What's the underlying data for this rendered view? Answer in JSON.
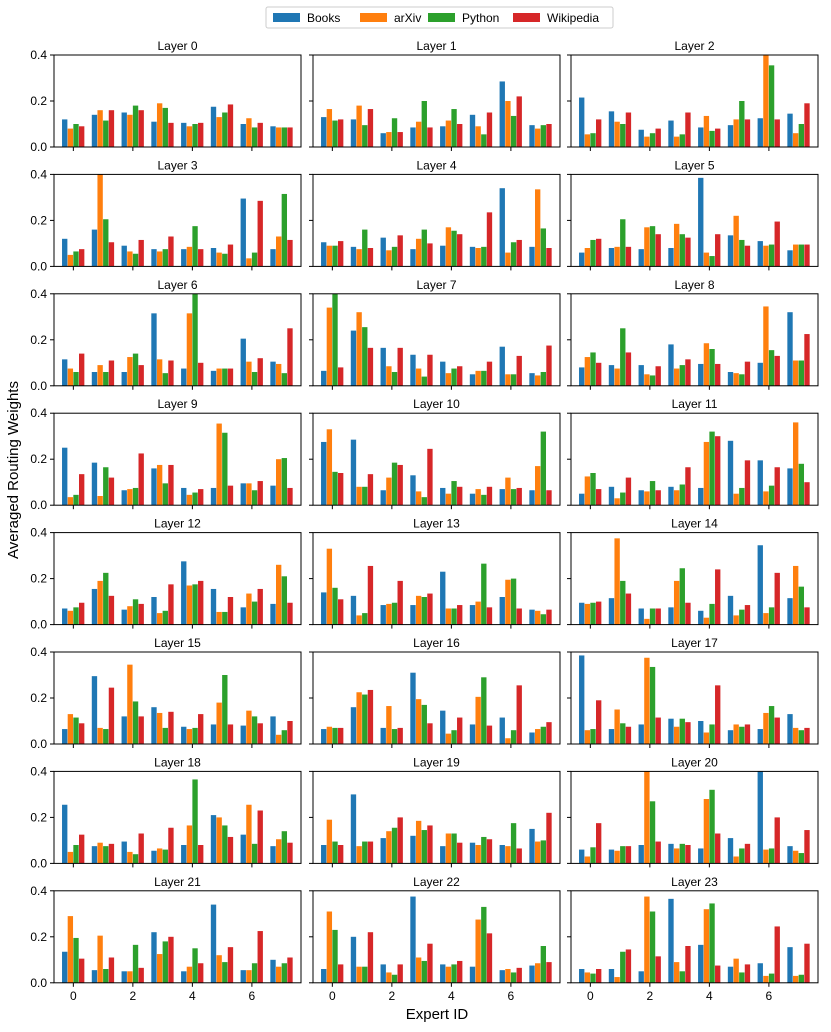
{
  "chart_data": {
    "type": "bar",
    "layout": "small-multiples 8 rows x 3 columns",
    "xlabel": "Expert ID",
    "ylabel": "Averaged Routing Weights",
    "ylim": [
      0,
      0.4
    ],
    "yticks": [
      "0.0",
      "0.2",
      "0.4"
    ],
    "xticks": [
      "0",
      "2",
      "4",
      "6"
    ],
    "experts": [
      0,
      1,
      2,
      3,
      4,
      5,
      6,
      7
    ],
    "legend_position": "top-center",
    "series": [
      {
        "name": "Books",
        "color": "#1f77b4"
      },
      {
        "name": "arXiv",
        "color": "#ff7f0e"
      },
      {
        "name": "Python",
        "color": "#2ca02c"
      },
      {
        "name": "Wikipedia",
        "color": "#d62728"
      }
    ],
    "panels": [
      {
        "title": "Layer 0",
        "values": [
          [
            0.12,
            0.14,
            0.15,
            0.11,
            0.105,
            0.175,
            0.1,
            0.09
          ],
          [
            0.08,
            0.16,
            0.14,
            0.19,
            0.09,
            0.13,
            0.125,
            0.085
          ],
          [
            0.1,
            0.115,
            0.18,
            0.17,
            0.1,
            0.15,
            0.085,
            0.085
          ],
          [
            0.09,
            0.16,
            0.16,
            0.105,
            0.105,
            0.185,
            0.105,
            0.085
          ]
        ]
      },
      {
        "title": "Layer 1",
        "values": [
          [
            0.13,
            0.12,
            0.06,
            0.085,
            0.09,
            0.14,
            0.285,
            0.095
          ],
          [
            0.165,
            0.18,
            0.065,
            0.11,
            0.115,
            0.09,
            0.2,
            0.08
          ],
          [
            0.115,
            0.095,
            0.125,
            0.2,
            0.165,
            0.055,
            0.135,
            0.095
          ],
          [
            0.12,
            0.165,
            0.065,
            0.085,
            0.1,
            0.15,
            0.22,
            0.1
          ]
        ]
      },
      {
        "title": "Layer 2",
        "values": [
          [
            0.215,
            0.155,
            0.075,
            0.115,
            0.085,
            0.095,
            0.125,
            0.145
          ],
          [
            0.055,
            0.11,
            0.045,
            0.045,
            0.135,
            0.12,
            0.4,
            0.06
          ],
          [
            0.06,
            0.1,
            0.06,
            0.055,
            0.07,
            0.2,
            0.355,
            0.1
          ],
          [
            0.12,
            0.15,
            0.08,
            0.15,
            0.08,
            0.12,
            0.12,
            0.19
          ]
        ]
      },
      {
        "title": "Layer 3",
        "values": [
          [
            0.12,
            0.16,
            0.09,
            0.075,
            0.075,
            0.08,
            0.295,
            0.075
          ],
          [
            0.05,
            0.4,
            0.065,
            0.065,
            0.085,
            0.06,
            0.035,
            0.13
          ],
          [
            0.065,
            0.205,
            0.055,
            0.075,
            0.175,
            0.055,
            0.06,
            0.315
          ],
          [
            0.075,
            0.105,
            0.115,
            0.13,
            0.075,
            0.095,
            0.285,
            0.115
          ]
        ]
      },
      {
        "title": "Layer 4",
        "values": [
          [
            0.105,
            0.085,
            0.125,
            0.075,
            0.09,
            0.085,
            0.34,
            0.085
          ],
          [
            0.09,
            0.075,
            0.07,
            0.12,
            0.17,
            0.08,
            0.06,
            0.335
          ],
          [
            0.09,
            0.16,
            0.085,
            0.16,
            0.155,
            0.085,
            0.105,
            0.165
          ],
          [
            0.11,
            0.08,
            0.135,
            0.1,
            0.14,
            0.235,
            0.115,
            0.08
          ]
        ]
      },
      {
        "title": "Layer 5",
        "values": [
          [
            0.06,
            0.08,
            0.075,
            0.08,
            0.385,
            0.135,
            0.11,
            0.07
          ],
          [
            0.08,
            0.085,
            0.17,
            0.185,
            0.06,
            0.22,
            0.09,
            0.095
          ],
          [
            0.115,
            0.205,
            0.175,
            0.14,
            0.045,
            0.115,
            0.095,
            0.095
          ],
          [
            0.12,
            0.085,
            0.14,
            0.125,
            0.14,
            0.09,
            0.195,
            0.095
          ]
        ]
      },
      {
        "title": "Layer 6",
        "values": [
          [
            0.115,
            0.06,
            0.06,
            0.315,
            0.075,
            0.065,
            0.205,
            0.105
          ],
          [
            0.075,
            0.09,
            0.125,
            0.115,
            0.315,
            0.075,
            0.105,
            0.095
          ],
          [
            0.06,
            0.06,
            0.14,
            0.055,
            0.41,
            0.075,
            0.06,
            0.055
          ],
          [
            0.14,
            0.11,
            0.09,
            0.11,
            0.1,
            0.075,
            0.12,
            0.25
          ]
        ]
      },
      {
        "title": "Layer 7",
        "values": [
          [
            0.065,
            0.24,
            0.165,
            0.135,
            0.105,
            0.05,
            0.17,
            0.055
          ],
          [
            0.34,
            0.32,
            0.085,
            0.075,
            0.055,
            0.065,
            0.05,
            0.045
          ],
          [
            0.41,
            0.255,
            0.06,
            0.04,
            0.075,
            0.065,
            0.05,
            0.06
          ],
          [
            0.08,
            0.165,
            0.165,
            0.135,
            0.085,
            0.105,
            0.13,
            0.175
          ]
        ]
      },
      {
        "title": "Layer 8",
        "values": [
          [
            0.08,
            0.09,
            0.09,
            0.18,
            0.095,
            0.06,
            0.1,
            0.32
          ],
          [
            0.125,
            0.075,
            0.05,
            0.075,
            0.185,
            0.055,
            0.345,
            0.11
          ],
          [
            0.145,
            0.25,
            0.045,
            0.09,
            0.16,
            0.05,
            0.155,
            0.11
          ],
          [
            0.1,
            0.145,
            0.085,
            0.115,
            0.095,
            0.105,
            0.13,
            0.225
          ]
        ]
      },
      {
        "title": "Layer 9",
        "values": [
          [
            0.25,
            0.185,
            0.065,
            0.16,
            0.075,
            0.075,
            0.095,
            0.085
          ],
          [
            0.035,
            0.04,
            0.07,
            0.175,
            0.045,
            0.355,
            0.095,
            0.2
          ],
          [
            0.045,
            0.165,
            0.075,
            0.095,
            0.055,
            0.315,
            0.065,
            0.205
          ],
          [
            0.135,
            0.12,
            0.225,
            0.175,
            0.07,
            0.085,
            0.105,
            0.075
          ]
        ]
      },
      {
        "title": "Layer 10",
        "values": [
          [
            0.275,
            0.285,
            0.065,
            0.13,
            0.075,
            0.05,
            0.07,
            0.065
          ],
          [
            0.33,
            0.08,
            0.12,
            0.06,
            0.05,
            0.07,
            0.12,
            0.17
          ],
          [
            0.145,
            0.08,
            0.185,
            0.035,
            0.105,
            0.045,
            0.07,
            0.32
          ],
          [
            0.14,
            0.135,
            0.175,
            0.245,
            0.08,
            0.08,
            0.075,
            0.065
          ]
        ]
      },
      {
        "title": "Layer 11",
        "values": [
          [
            0.05,
            0.08,
            0.065,
            0.08,
            0.075,
            0.28,
            0.195,
            0.16
          ],
          [
            0.125,
            0.03,
            0.06,
            0.065,
            0.275,
            0.05,
            0.06,
            0.36
          ],
          [
            0.14,
            0.055,
            0.105,
            0.09,
            0.32,
            0.075,
            0.085,
            0.18
          ],
          [
            0.07,
            0.12,
            0.065,
            0.165,
            0.3,
            0.195,
            0.165,
            0.1
          ]
        ]
      },
      {
        "title": "Layer 12",
        "values": [
          [
            0.07,
            0.155,
            0.065,
            0.12,
            0.275,
            0.155,
            0.075,
            0.09
          ],
          [
            0.06,
            0.19,
            0.08,
            0.05,
            0.17,
            0.055,
            0.135,
            0.26
          ],
          [
            0.075,
            0.225,
            0.11,
            0.06,
            0.175,
            0.055,
            0.1,
            0.21
          ],
          [
            0.095,
            0.125,
            0.09,
            0.175,
            0.19,
            0.12,
            0.155,
            0.095
          ]
        ]
      },
      {
        "title": "Layer 13",
        "values": [
          [
            0.14,
            0.125,
            0.085,
            0.085,
            0.23,
            0.085,
            0.12,
            0.065
          ],
          [
            0.33,
            0.04,
            0.09,
            0.125,
            0.07,
            0.1,
            0.195,
            0.06
          ],
          [
            0.16,
            0.05,
            0.095,
            0.12,
            0.07,
            0.265,
            0.2,
            0.045
          ],
          [
            0.11,
            0.255,
            0.19,
            0.135,
            0.085,
            0.075,
            0.07,
            0.065
          ]
        ]
      },
      {
        "title": "Layer 14",
        "values": [
          [
            0.095,
            0.115,
            0.07,
            0.075,
            0.06,
            0.125,
            0.345,
            0.115
          ],
          [
            0.09,
            0.375,
            0.025,
            0.19,
            0.03,
            0.04,
            0.05,
            0.255
          ],
          [
            0.095,
            0.19,
            0.07,
            0.245,
            0.09,
            0.065,
            0.075,
            0.165
          ],
          [
            0.1,
            0.135,
            0.07,
            0.095,
            0.24,
            0.085,
            0.225,
            0.075
          ]
        ]
      },
      {
        "title": "Layer 15",
        "values": [
          [
            0.065,
            0.295,
            0.12,
            0.16,
            0.075,
            0.085,
            0.08,
            0.12
          ],
          [
            0.13,
            0.07,
            0.345,
            0.135,
            0.065,
            0.18,
            0.145,
            0.04
          ],
          [
            0.115,
            0.065,
            0.185,
            0.07,
            0.07,
            0.3,
            0.12,
            0.06
          ],
          [
            0.09,
            0.245,
            0.12,
            0.14,
            0.13,
            0.085,
            0.09,
            0.1
          ]
        ]
      },
      {
        "title": "Layer 16",
        "values": [
          [
            0.065,
            0.16,
            0.07,
            0.31,
            0.145,
            0.085,
            0.115,
            0.05
          ],
          [
            0.075,
            0.225,
            0.165,
            0.195,
            0.045,
            0.205,
            0.025,
            0.065
          ],
          [
            0.07,
            0.215,
            0.065,
            0.17,
            0.06,
            0.29,
            0.06,
            0.075
          ],
          [
            0.07,
            0.235,
            0.07,
            0.09,
            0.115,
            0.08,
            0.255,
            0.095
          ]
        ]
      },
      {
        "title": "Layer 17",
        "values": [
          [
            0.385,
            0.065,
            0.085,
            0.11,
            0.1,
            0.06,
            0.065,
            0.13
          ],
          [
            0.06,
            0.15,
            0.375,
            0.075,
            0.05,
            0.085,
            0.135,
            0.07
          ],
          [
            0.065,
            0.09,
            0.335,
            0.11,
            0.085,
            0.075,
            0.165,
            0.06
          ],
          [
            0.19,
            0.075,
            0.115,
            0.095,
            0.255,
            0.085,
            0.115,
            0.07
          ]
        ]
      },
      {
        "title": "Layer 18",
        "values": [
          [
            0.255,
            0.075,
            0.095,
            0.055,
            0.08,
            0.21,
            0.125,
            0.075
          ],
          [
            0.05,
            0.09,
            0.05,
            0.065,
            0.165,
            0.2,
            0.255,
            0.105
          ],
          [
            0.08,
            0.075,
            0.04,
            0.06,
            0.365,
            0.165,
            0.085,
            0.14
          ],
          [
            0.125,
            0.085,
            0.13,
            0.155,
            0.08,
            0.115,
            0.23,
            0.09
          ]
        ]
      },
      {
        "title": "Layer 19",
        "values": [
          [
            0.08,
            0.3,
            0.11,
            0.12,
            0.075,
            0.09,
            0.08,
            0.15
          ],
          [
            0.19,
            0.075,
            0.14,
            0.185,
            0.13,
            0.08,
            0.075,
            0.095
          ],
          [
            0.095,
            0.095,
            0.155,
            0.145,
            0.13,
            0.115,
            0.175,
            0.1
          ],
          [
            0.08,
            0.095,
            0.2,
            0.165,
            0.09,
            0.105,
            0.065,
            0.22
          ]
        ]
      },
      {
        "title": "Layer 20",
        "values": [
          [
            0.06,
            0.06,
            0.08,
            0.085,
            0.065,
            0.11,
            0.4,
            0.075
          ],
          [
            0.03,
            0.055,
            0.41,
            0.065,
            0.28,
            0.03,
            0.06,
            0.055
          ],
          [
            0.07,
            0.075,
            0.27,
            0.085,
            0.32,
            0.065,
            0.065,
            0.045
          ],
          [
            0.175,
            0.075,
            0.095,
            0.08,
            0.13,
            0.085,
            0.2,
            0.145
          ]
        ]
      },
      {
        "title": "Layer 21",
        "values": [
          [
            0.135,
            0.055,
            0.05,
            0.22,
            0.05,
            0.34,
            0.055,
            0.1
          ],
          [
            0.29,
            0.205,
            0.05,
            0.125,
            0.07,
            0.12,
            0.055,
            0.07
          ],
          [
            0.195,
            0.06,
            0.165,
            0.18,
            0.15,
            0.09,
            0.085,
            0.085
          ],
          [
            0.105,
            0.11,
            0.065,
            0.2,
            0.085,
            0.155,
            0.225,
            0.11
          ]
        ]
      },
      {
        "title": "Layer 22",
        "values": [
          [
            0.06,
            0.2,
            0.08,
            0.375,
            0.08,
            0.07,
            0.055,
            0.075
          ],
          [
            0.31,
            0.07,
            0.045,
            0.11,
            0.07,
            0.275,
            0.06,
            0.085
          ],
          [
            0.23,
            0.07,
            0.035,
            0.095,
            0.08,
            0.33,
            0.045,
            0.16
          ],
          [
            0.08,
            0.22,
            0.08,
            0.17,
            0.095,
            0.215,
            0.065,
            0.09
          ]
        ]
      },
      {
        "title": "Layer 23",
        "values": [
          [
            0.06,
            0.06,
            0.05,
            0.365,
            0.165,
            0.07,
            0.085,
            0.155
          ],
          [
            0.045,
            0.025,
            0.375,
            0.09,
            0.32,
            0.105,
            0.03,
            0.03
          ],
          [
            0.04,
            0.135,
            0.31,
            0.05,
            0.345,
            0.045,
            0.04,
            0.035
          ],
          [
            0.06,
            0.145,
            0.115,
            0.16,
            0.075,
            0.08,
            0.245,
            0.17
          ]
        ]
      }
    ]
  }
}
